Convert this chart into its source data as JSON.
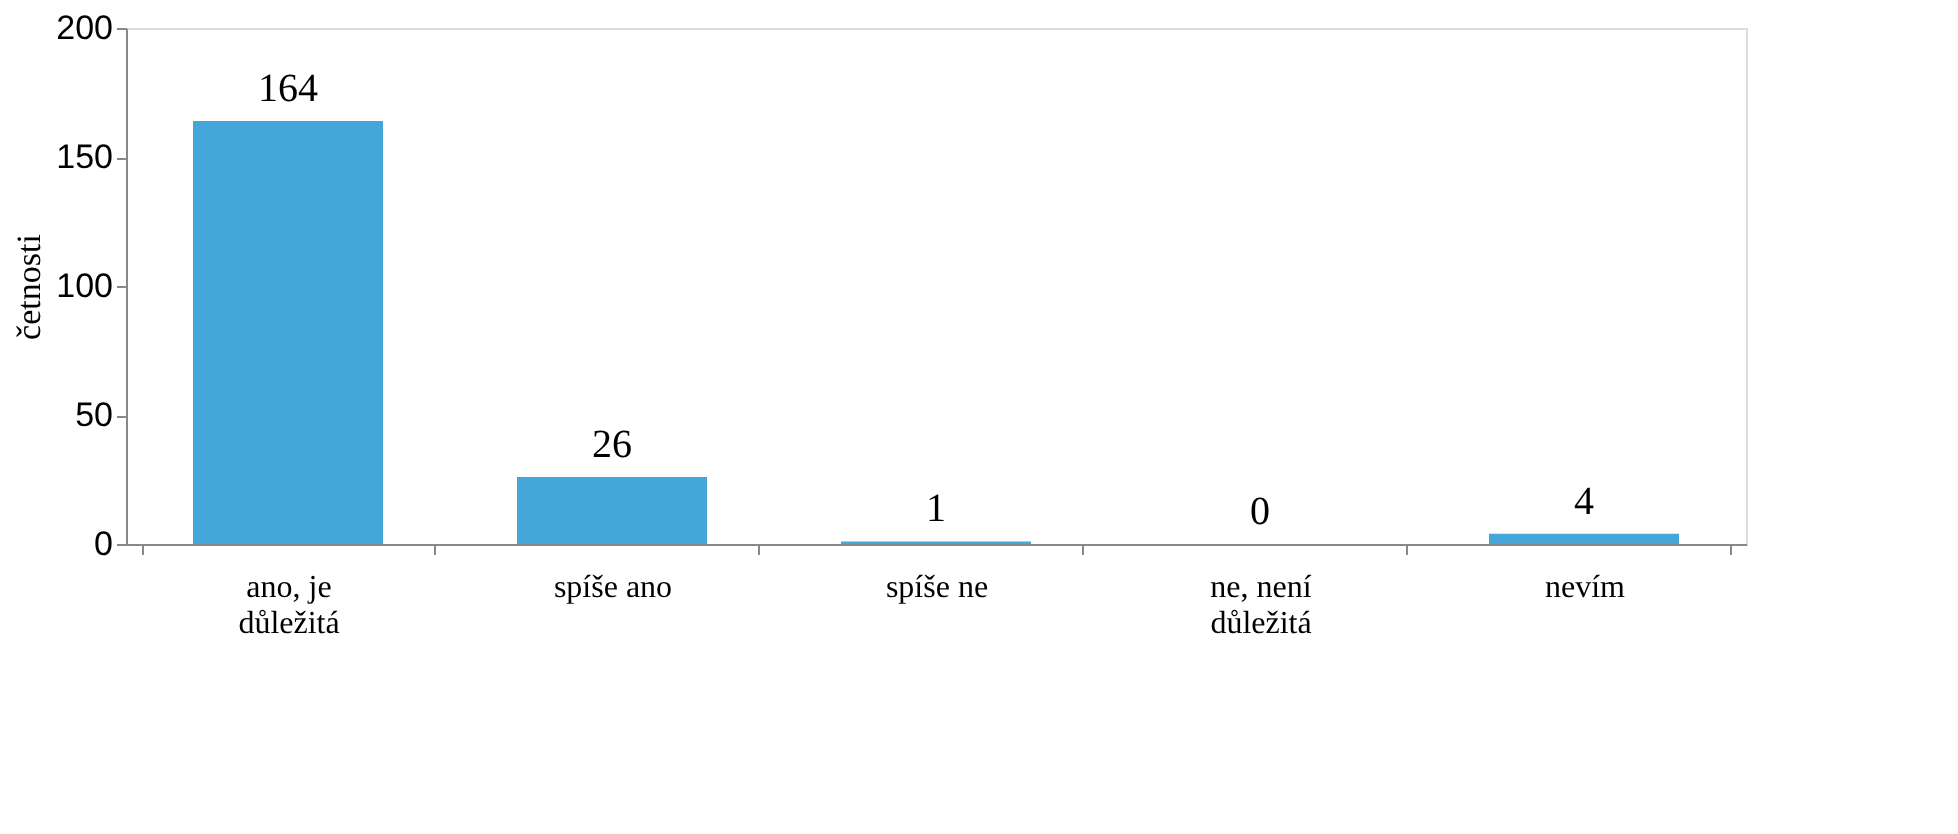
{
  "chart_data": {
    "type": "bar",
    "ylabel": "četnosti",
    "categories": [
      "ano, je důležitá",
      "spíše ano",
      "spíše ne",
      "ne, není důležitá",
      "nevím"
    ],
    "values": [
      164,
      26,
      1,
      0,
      4
    ],
    "color": "#45a6da",
    "ylim": [
      0,
      200
    ],
    "yticks": [
      0,
      50,
      100,
      150,
      200
    ],
    "grid": false,
    "data_labels": true
  }
}
